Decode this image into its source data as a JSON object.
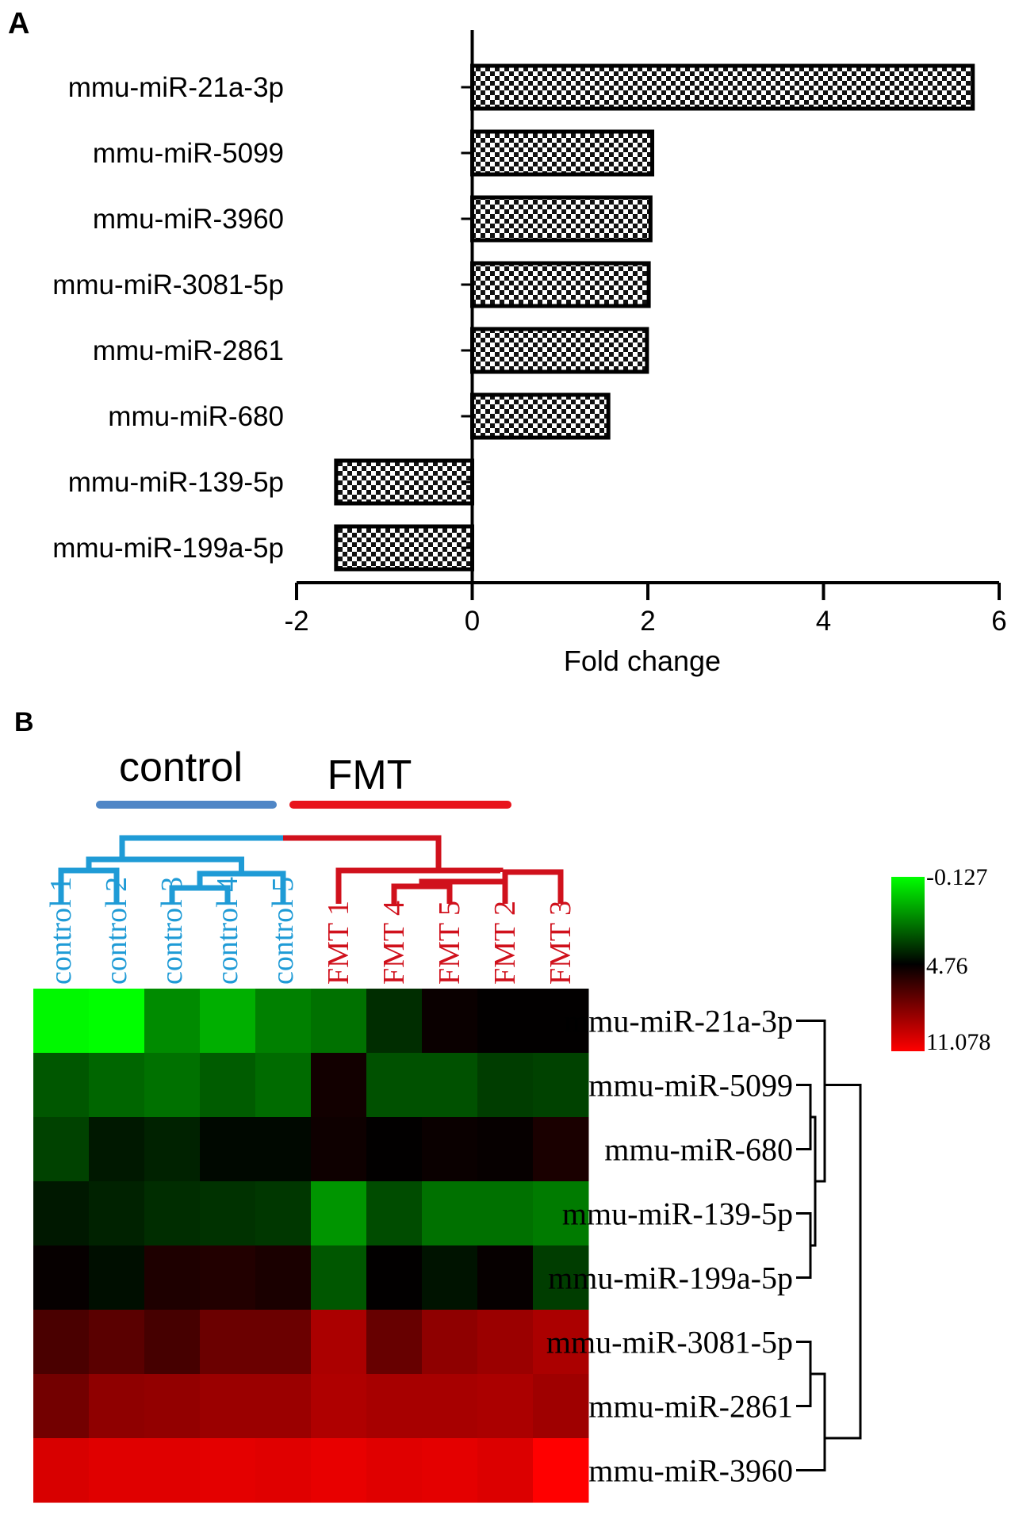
{
  "panels": {
    "a": {
      "label": "A"
    },
    "b": {
      "label": "B"
    }
  },
  "chart_data": [
    {
      "type": "bar",
      "orientation": "horizontal",
      "categories": [
        "mmu-miR-21a-3p",
        "mmu-miR-5099",
        "mmu-miR-3960",
        "mmu-miR-3081-5p",
        "mmu-miR-2861",
        "mmu-miR-680",
        "mmu-miR-139-5p",
        "mmu-miR-199a-5p"
      ],
      "values": [
        5.7,
        2.05,
        2.03,
        2.01,
        1.99,
        1.55,
        -1.55,
        -1.55
      ],
      "xlabel": "Fold change",
      "xlim": [
        -2,
        6
      ],
      "xticks": [
        -2,
        0,
        2,
        4,
        6
      ],
      "fill": "checkerboard"
    },
    {
      "type": "heatmap",
      "groups": [
        {
          "name": "control",
          "color": "#4f86c6"
        },
        {
          "name": "FMT",
          "color": "#e8141c"
        }
      ],
      "columns": [
        "control 1",
        "control 2",
        "control 3",
        "control 4",
        "control 5",
        "FMT 1",
        "FMT 4",
        "FMT 5",
        "FMT 2",
        "FMT 3"
      ],
      "column_colors": [
        "#1f9bd6",
        "#1f9bd6",
        "#1f9bd6",
        "#1f9bd6",
        "#1f9bd6",
        "#d0111c",
        "#d0111c",
        "#d0111c",
        "#d0111c",
        "#d0111c"
      ],
      "rows": [
        "mmu-miR-21a-3p",
        "mmu-miR-5099",
        "mmu-miR-680",
        "mmu-miR-139-5p",
        "mmu-miR-199a-5p",
        "mmu-miR-3081-5p",
        "mmu-miR-2861",
        "mmu-miR-3960"
      ],
      "values": [
        [
          0.0,
          -0.127,
          2.1,
          1.4,
          2.3,
          2.6,
          3.9,
          5.0,
          4.8,
          4.8
        ],
        [
          3.1,
          2.8,
          2.6,
          3.0,
          2.7,
          5.2,
          3.2,
          3.2,
          3.6,
          3.5
        ],
        [
          3.5,
          4.3,
          4.1,
          4.6,
          4.6,
          5.1,
          4.8,
          5.0,
          4.9,
          5.4
        ],
        [
          4.3,
          4.1,
          3.9,
          3.8,
          3.7,
          1.9,
          3.3,
          2.6,
          2.6,
          2.4
        ],
        [
          4.9,
          4.5,
          5.5,
          5.6,
          5.4,
          3.1,
          4.8,
          4.4,
          4.9,
          3.6
        ],
        [
          6.6,
          7.0,
          6.5,
          7.4,
          7.4,
          9.0,
          7.3,
          8.3,
          8.6,
          9.0
        ],
        [
          7.6,
          8.3,
          8.4,
          8.6,
          8.6,
          9.1,
          8.9,
          8.9,
          9.0,
          8.7
        ],
        [
          10.1,
          10.3,
          10.3,
          10.4,
          10.3,
          10.5,
          10.3,
          10.4,
          10.2,
          11.078
        ]
      ],
      "color_scale": {
        "ticks": [
          "-0.127",
          "4.76",
          "11.078"
        ],
        "min": -0.127,
        "mid": 4.76,
        "max": 11.078,
        "low_color": "#00ff00",
        "mid_color": "#000000",
        "high_color": "#ff0000"
      }
    }
  ]
}
